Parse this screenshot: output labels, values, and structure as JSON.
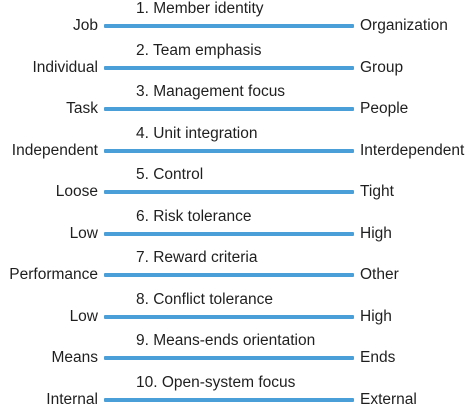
{
  "style": {
    "bar_color": "#4a9fd8",
    "text_color": "#1f1f1f"
  },
  "dimensions": [
    {
      "title": "1. Member identity",
      "left": "Job",
      "right": "Organization"
    },
    {
      "title": "2. Team emphasis",
      "left": "Individual",
      "right": "Group"
    },
    {
      "title": "3. Management focus",
      "left": "Task",
      "right": "People"
    },
    {
      "title": "4. Unit integration",
      "left": "Independent",
      "right": "Interdependent"
    },
    {
      "title": "5. Control",
      "left": "Loose",
      "right": "Tight"
    },
    {
      "title": "6. Risk tolerance",
      "left": "Low",
      "right": "High"
    },
    {
      "title": "7. Reward criteria",
      "left": "Performance",
      "right": "Other"
    },
    {
      "title": "8. Conflict tolerance",
      "left": "Low",
      "right": "High"
    },
    {
      "title": "9. Means-ends orientation",
      "left": "Means",
      "right": "Ends"
    },
    {
      "title": "10. Open-system focus",
      "left": "Internal",
      "right": "External"
    }
  ]
}
